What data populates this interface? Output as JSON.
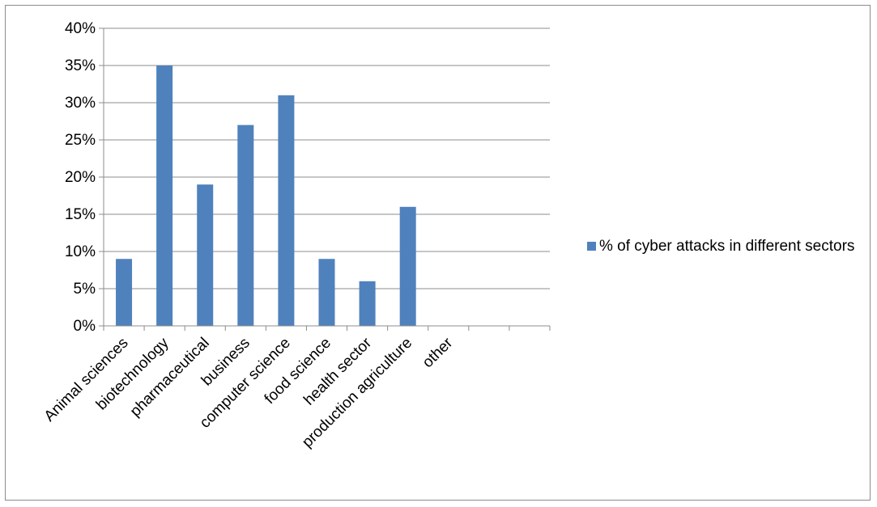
{
  "chart_data": {
    "type": "bar",
    "categories": [
      "Animal sciences",
      "biotechnology",
      "pharmaceutical",
      "business",
      "computer science",
      "food science",
      "health sector",
      "production agriculture",
      "other",
      "",
      ""
    ],
    "series": [
      {
        "name": "% of cyber attacks in different sectors",
        "values": [
          0.09,
          0.35,
          0.19,
          0.27,
          0.31,
          0.09,
          0.06,
          0.16,
          null,
          null,
          null
        ],
        "color": "#4f81bd"
      }
    ],
    "title": "",
    "xlabel": "",
    "ylabel": "",
    "ylim": [
      0,
      0.4
    ],
    "ytick_labels": [
      "0%",
      "5%",
      "10%",
      "15%",
      "20%",
      "25%",
      "30%",
      "35%",
      "40%"
    ],
    "grid": true,
    "legend_position": "right"
  }
}
